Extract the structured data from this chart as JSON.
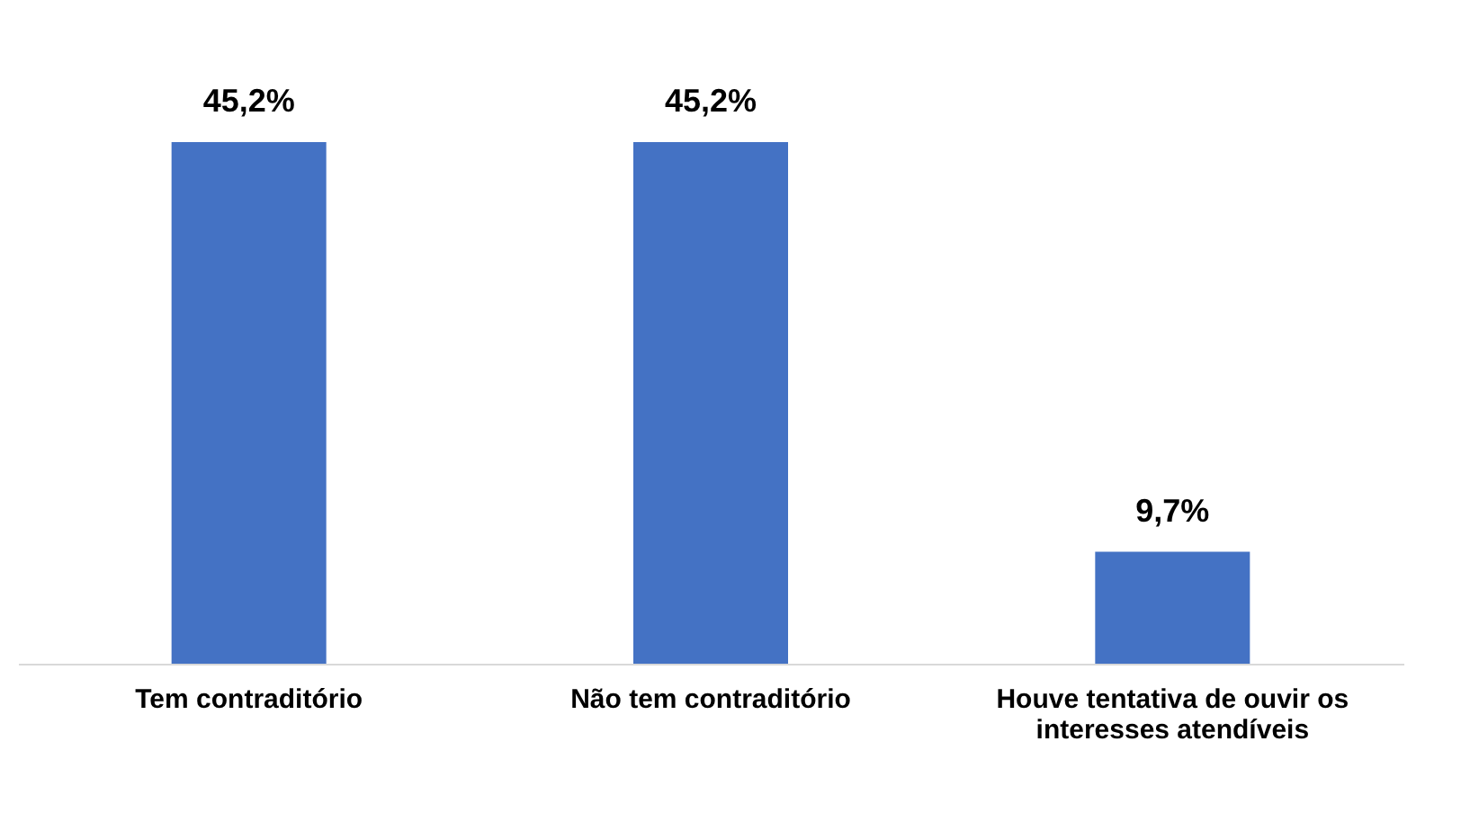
{
  "chart_data": {
    "type": "bar",
    "categories": [
      "Tem contraditório",
      "Não tem contraditório",
      "Houve tentativa de ouvir os interesses atendíveis"
    ],
    "values": [
      45.2,
      45.2,
      9.7
    ],
    "value_labels": [
      "45,2%",
      "45,2%",
      "9,7%"
    ],
    "color": "#4472c4",
    "grid": false
  }
}
